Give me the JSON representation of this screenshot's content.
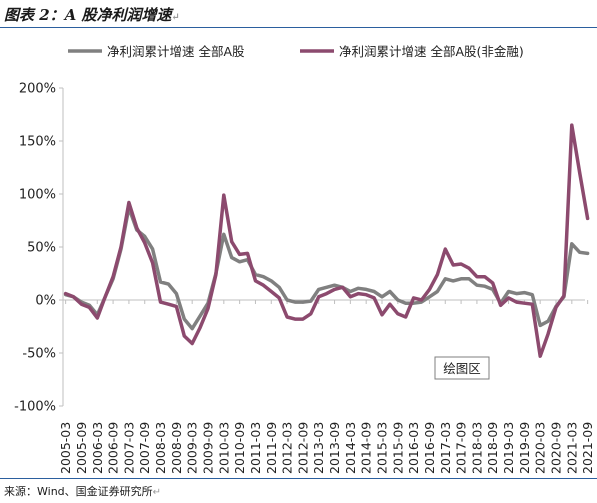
{
  "figure": {
    "title": "图表 2：A 股净利润增速",
    "source": "来源：Wind、国金证券研究所",
    "return_mark": "↵"
  },
  "colors": {
    "series_all": "#808080",
    "series_ex_fin": "#8c4a6e",
    "rule": "#2b5f9e",
    "axis": "#bfbfbf"
  },
  "chart_data": {
    "type": "line",
    "title": "",
    "xlabel": "",
    "ylabel": "",
    "ylim": [
      -100,
      200
    ],
    "yticks": [
      -100,
      -50,
      0,
      50,
      100,
      150,
      200
    ],
    "ytick_labels": [
      "-100%",
      "-50%",
      "0%",
      "50%",
      "100%",
      "150%",
      "200%"
    ],
    "grid": false,
    "legend_position": "top",
    "annotation": "绘图区",
    "x_tick_labels": [
      "2005-03",
      "2005-09",
      "2006-03",
      "2006-09",
      "2007-03",
      "2007-09",
      "2008-03",
      "2008-09",
      "2009-03",
      "2009-09",
      "2010-03",
      "2010-09",
      "2011-03",
      "2011-09",
      "2012-03",
      "2012-09",
      "2013-03",
      "2013-09",
      "2014-03",
      "2014-09",
      "2015-03",
      "2015-09",
      "2016-03",
      "2016-09",
      "2017-03",
      "2017-09",
      "2018-03",
      "2018-09",
      "2019-03",
      "2019-09",
      "2020-03",
      "2020-09",
      "2021-03",
      "2021-09"
    ],
    "x": [
      "2005-03",
      "2005-06",
      "2005-09",
      "2005-12",
      "2006-03",
      "2006-06",
      "2006-09",
      "2006-12",
      "2007-03",
      "2007-06",
      "2007-09",
      "2007-12",
      "2008-03",
      "2008-06",
      "2008-09",
      "2008-12",
      "2009-03",
      "2009-06",
      "2009-09",
      "2009-12",
      "2010-03",
      "2010-06",
      "2010-09",
      "2010-12",
      "2011-03",
      "2011-06",
      "2011-09",
      "2011-12",
      "2012-03",
      "2012-06",
      "2012-09",
      "2012-12",
      "2013-03",
      "2013-06",
      "2013-09",
      "2013-12",
      "2014-03",
      "2014-06",
      "2014-09",
      "2014-12",
      "2015-03",
      "2015-06",
      "2015-09",
      "2015-12",
      "2016-03",
      "2016-06",
      "2016-09",
      "2016-12",
      "2017-03",
      "2017-06",
      "2017-09",
      "2017-12",
      "2018-03",
      "2018-06",
      "2018-09",
      "2018-12",
      "2019-03",
      "2019-06",
      "2019-09",
      "2019-12",
      "2020-03",
      "2020-06",
      "2020-09",
      "2020-12",
      "2021-03",
      "2021-06",
      "2021-09"
    ],
    "series": [
      {
        "name": "净利润累计增速 全部A股",
        "color": "#808080",
        "values": [
          5,
          3,
          -2,
          -5,
          -14,
          3,
          20,
          48,
          87,
          66,
          60,
          48,
          17,
          15,
          6,
          -18,
          -27,
          -15,
          -3,
          25,
          62,
          40,
          36,
          38,
          24,
          22,
          18,
          12,
          0,
          -2,
          -2,
          -1,
          10,
          12,
          14,
          12,
          8,
          11,
          10,
          8,
          3,
          8,
          0,
          -3,
          -3,
          -2,
          3,
          8,
          20,
          18,
          20,
          20,
          14,
          13,
          10,
          -3,
          8,
          6,
          7,
          5,
          -24,
          -20,
          -6,
          3,
          53,
          45,
          44
        ]
      },
      {
        "name": "净利润累计增速 全部A股(非金融)",
        "color": "#8c4a6e",
        "values": [
          6,
          3,
          -4,
          -7,
          -17,
          3,
          22,
          50,
          92,
          68,
          54,
          35,
          -2,
          -4,
          -6,
          -34,
          -41,
          -26,
          -8,
          24,
          99,
          55,
          43,
          44,
          18,
          14,
          8,
          2,
          -16,
          -18,
          -18,
          -13,
          3,
          6,
          10,
          12,
          3,
          6,
          5,
          2,
          -14,
          -4,
          -13,
          -16,
          2,
          0,
          10,
          24,
          48,
          33,
          34,
          30,
          22,
          22,
          16,
          -5,
          2,
          -2,
          -3,
          -4,
          -53,
          -32,
          -7,
          4,
          165,
          120,
          77
        ]
      }
    ]
  }
}
